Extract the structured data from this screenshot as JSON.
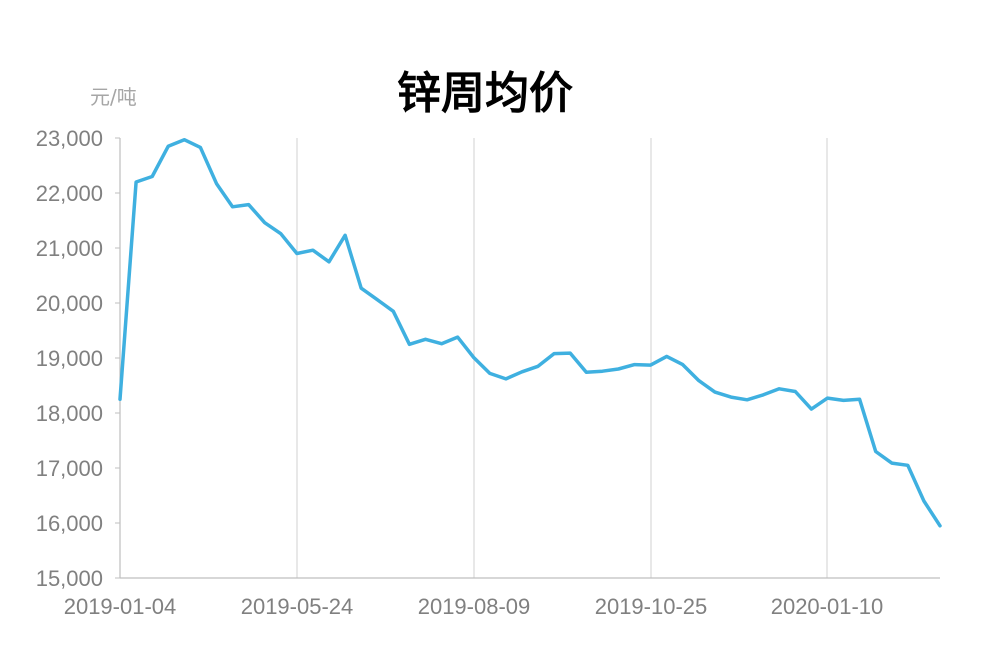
{
  "chart_data": {
    "type": "line",
    "title": "锌周均价",
    "ylabel": "元/吨",
    "xlabel": "",
    "ylim": [
      15000,
      23000
    ],
    "yticks": [
      "15,000",
      "16,000",
      "17,000",
      "18,000",
      "19,000",
      "20,000",
      "21,000",
      "22,000",
      "23,000"
    ],
    "xticks": [
      "2019-01-04",
      "2019-05-24",
      "2019-08-09",
      "2019-10-25",
      "2020-01-10"
    ],
    "grid": "vertical",
    "legend": "none",
    "colors": {
      "line": "#3fb0e0",
      "grid": "#d9d9d9",
      "axis": "#bfbfbf"
    },
    "series": [
      {
        "values": [
          18250,
          22200,
          22300,
          22850,
          22970,
          22830,
          22170,
          21750,
          21790,
          21460,
          21260,
          20900,
          20960,
          20750,
          21230,
          20270,
          20060,
          19850,
          19250,
          19340,
          19260,
          19380,
          19010,
          18720,
          18620,
          18750,
          18850,
          19080,
          19090,
          18740,
          18760,
          18800,
          18880,
          18870,
          19030,
          18880,
          18590,
          18380,
          18290,
          18240,
          18330,
          18440,
          18390,
          18070,
          18270,
          18230,
          18250,
          17300,
          17090,
          17050,
          16400,
          15950
        ]
      }
    ]
  }
}
